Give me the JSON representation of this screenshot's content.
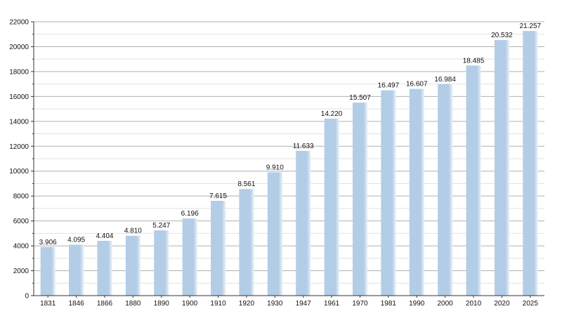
{
  "chart_data": {
    "type": "bar",
    "categories": [
      "1831",
      "1846",
      "1866",
      "1880",
      "1890",
      "1900",
      "1910",
      "1920",
      "1930",
      "1947",
      "1961",
      "1970",
      "1981",
      "1990",
      "2000",
      "2010",
      "2020",
      "2025"
    ],
    "values": [
      3906,
      4095,
      4404,
      4810,
      5247,
      6196,
      7615,
      8561,
      9910,
      11633,
      14220,
      15507,
      16497,
      16607,
      16984,
      18485,
      20532,
      21257
    ],
    "data_labels": [
      "3.906",
      "4.095",
      "4.404",
      "4.810",
      "5.247",
      "6.196",
      "7.615",
      "8.561",
      "9.910",
      "11.633",
      "14.220",
      "15.507",
      "16.497",
      "16.607",
      "16.984",
      "18.485",
      "20.532",
      "21.257"
    ],
    "y_ticks": [
      0,
      2000,
      4000,
      6000,
      8000,
      10000,
      12000,
      14000,
      16000,
      18000,
      20000,
      22000
    ],
    "y_tick_labels": [
      "0",
      "2000",
      "4000",
      "6000",
      "8000",
      "10000",
      "12000",
      "14000",
      "16000",
      "18000",
      "20000",
      "22000"
    ],
    "ylim": [
      0,
      22000
    ],
    "grid": true,
    "legend": "none",
    "colors": {
      "bar": "#b3cde6",
      "bar_edge": "#e8f0f8",
      "grid_major": "#b0b0b0",
      "grid_minor": "#e2e2e2",
      "axis": "#333333"
    }
  }
}
